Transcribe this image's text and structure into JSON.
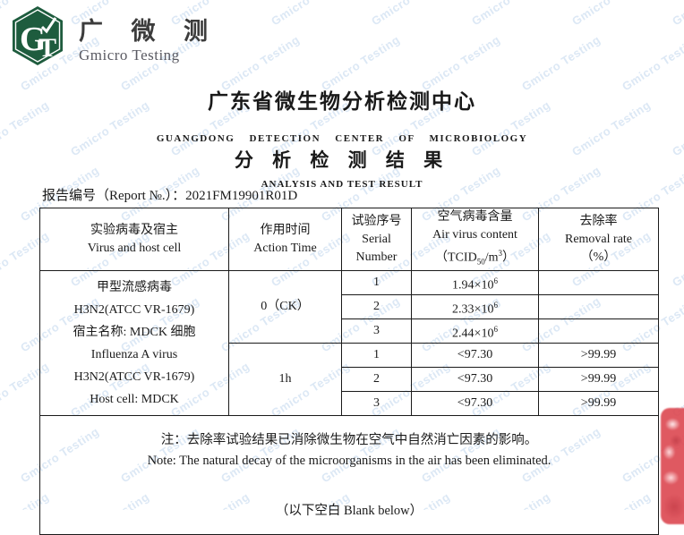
{
  "brand": {
    "logo_letters": "GT",
    "logo_color": "#1e5c3e",
    "name_zh": "广 微 测",
    "name_en": "Gmicro Testing"
  },
  "header": {
    "center_zh": "广东省微生物分析检测中心",
    "center_en": "GUANGDONG DETECTION CENTER OF MICROBIOLOGY",
    "result_zh": "分 析 检 测 结 果",
    "result_en": "ANALYSIS AND TEST RESULT"
  },
  "report": {
    "label": "报告编号（Report №.）：",
    "number": "2021FM19901R01D"
  },
  "table": {
    "headers": {
      "virus_zh": "实验病毒及宿主",
      "virus_en": "Virus and host cell",
      "time_zh": "作用时间",
      "time_en": "Action Time",
      "serial_zh": "试验序号",
      "serial_en1": "Serial",
      "serial_en2": "Number",
      "content_zh": "空气病毒含量",
      "content_en": "Air virus content",
      "content_unit_prefix": "（TCID",
      "content_unit_sub": "50",
      "content_unit_mid": "/m",
      "content_unit_sup": "3",
      "content_unit_suffix": "）",
      "removal_zh": "去除率",
      "removal_en": "Removal rate",
      "removal_unit": "（%）"
    },
    "virus_lines": [
      "甲型流感病毒",
      "H3N2(ATCC VR-1679)",
      "宿主名称: MDCK 细胞",
      "Influenza A virus",
      "H3N2(ATCC VR-1679)",
      "Host cell: MDCK"
    ],
    "action_time_ck": "0（CK）",
    "action_time_1h": "1h",
    "rows": [
      {
        "serial": "1",
        "content_base": "1.94×10",
        "content_exp": "6",
        "removal": "",
        "removal_diagonal": true
      },
      {
        "serial": "2",
        "content_base": "2.33×10",
        "content_exp": "6",
        "removal": "",
        "removal_diagonal": true
      },
      {
        "serial": "3",
        "content_base": "2.44×10",
        "content_exp": "6",
        "removal": "",
        "removal_diagonal": true
      },
      {
        "serial": "1",
        "content_base": "<97.30",
        "content_exp": "",
        "removal": ">99.99",
        "removal_diagonal": false
      },
      {
        "serial": "2",
        "content_base": "<97.30",
        "content_exp": "",
        "removal": ">99.99",
        "removal_diagonal": false
      },
      {
        "serial": "3",
        "content_base": "<97.30",
        "content_exp": "",
        "removal": ">99.99",
        "removal_diagonal": false
      }
    ]
  },
  "note": {
    "line1": "注：去除率试验结果已消除微生物在空气中自然消亡因素的影响。",
    "line2": "Note: The natural decay of the microorganisms in the air has been eliminated.",
    "blank": "（以下空白  Blank below）"
  },
  "watermark": {
    "text": "Gmicro Testing",
    "color": "#dce8f5"
  },
  "stamp": {
    "color": "#dd4b54"
  }
}
